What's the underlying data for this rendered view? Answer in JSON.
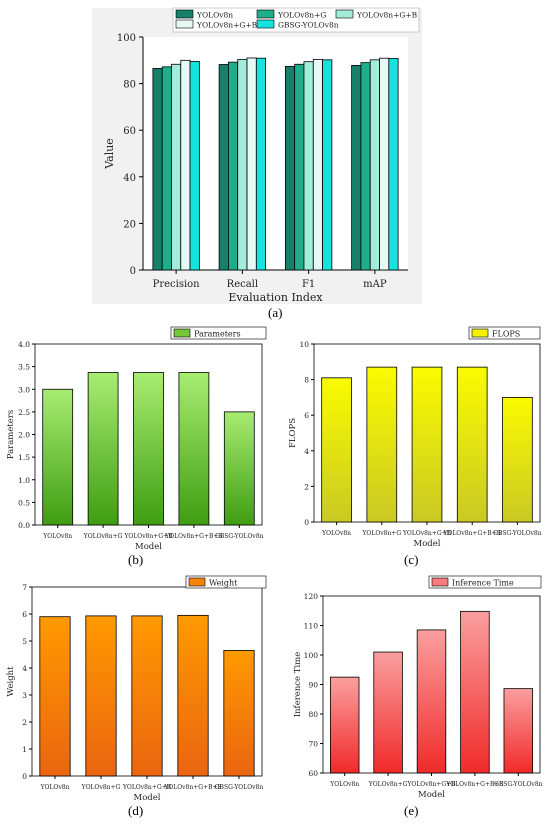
{
  "panel_labels": [
    "(a)",
    "(b)",
    "(c)",
    "(d)",
    "(e)"
  ],
  "chart_data": [
    {
      "id": "a",
      "type": "bar",
      "xlabel": "Evaluation Index",
      "ylabel": "Value",
      "ylim": [
        0,
        100
      ],
      "yticks": [
        0,
        20,
        40,
        60,
        80,
        100
      ],
      "categories": [
        "Precision",
        "Recall",
        "F1",
        "mAP"
      ],
      "legend_placement": "top",
      "series": [
        {
          "name": "YOLOv8n",
          "color": "#16806a",
          "values": [
            86.5,
            88.2,
            87.4,
            87.8
          ]
        },
        {
          "name": "YOLOv8n+G",
          "color": "#1fae8c",
          "values": [
            87.2,
            89.2,
            88.3,
            89.0
          ]
        },
        {
          "name": "YOLOv8n+G+B",
          "color": "#a2ecd9",
          "values": [
            88.3,
            90.4,
            89.4,
            90.2
          ]
        },
        {
          "name": "YOLOv8n+G+B+S",
          "color": "#e6f9f4",
          "values": [
            90.0,
            91.0,
            90.4,
            90.9
          ]
        },
        {
          "name": "GBSG-YOLOv8n",
          "color": "#17e3de",
          "values": [
            89.5,
            90.9,
            90.2,
            90.8
          ]
        }
      ]
    },
    {
      "id": "b",
      "type": "bar",
      "xlabel": "Model",
      "ylabel": "Parameters",
      "legend": "Parameters",
      "ylim": [
        0,
        4.0
      ],
      "yticks": [
        "0.0",
        "0.5",
        "1.0",
        "1.5",
        "2.0",
        "2.5",
        "3.0",
        "3.5",
        "4.0"
      ],
      "categories": [
        "YOLOv8n",
        "YOLOv8n+G",
        "YOLOv8n+G+B",
        "YOLOv8n+G+B+S",
        "GBSG-YOLOv8n"
      ],
      "values": [
        3.0,
        3.37,
        3.37,
        3.37,
        2.5
      ],
      "colors": {
        "top": "#a8ec72",
        "bottom": "#3f9d12",
        "legend": "#72c638"
      }
    },
    {
      "id": "c",
      "type": "bar",
      "xlabel": "Model",
      "ylabel": "FLOPS",
      "legend": "FLOPS",
      "ylim": [
        0,
        10
      ],
      "yticks": [
        "0",
        "2",
        "4",
        "6",
        "8",
        "10"
      ],
      "categories": [
        "YOLOv8n",
        "YOLOv8n+G",
        "YOLOv8n+G+B",
        "YOLOv8n+G+B+S",
        "GBSG-YOLOv8n"
      ],
      "values": [
        8.1,
        8.7,
        8.7,
        8.7,
        7.0
      ],
      "colors": {
        "top": "#fbfb00",
        "bottom": "#c9c925",
        "legend": "#f1f100"
      }
    },
    {
      "id": "d",
      "type": "bar",
      "xlabel": "Model",
      "ylabel": "Weight",
      "legend": "Weight",
      "ylim": [
        0,
        7
      ],
      "yticks": [
        "0",
        "1",
        "2",
        "3",
        "4",
        "5",
        "6",
        "7"
      ],
      "categories": [
        "YOLOv8n",
        "YOLOv8n+G",
        "YOLOv8n+G+B",
        "YOLOv8n+G+B+S",
        "GBSG-YOLOv8n"
      ],
      "values": [
        5.9,
        5.93,
        5.93,
        5.95,
        4.65
      ],
      "colors": {
        "top": "#ff9a00",
        "bottom": "#ea6510",
        "legend": "#f7840a"
      }
    },
    {
      "id": "e",
      "type": "bar",
      "xlabel": "Model",
      "ylabel": "Inference Time",
      "legend": "Inference Time",
      "ylim": [
        60,
        120
      ],
      "yticks": [
        "60",
        "70",
        "80",
        "90",
        "100",
        "110",
        "120"
      ],
      "categories": [
        "YOLOv8n",
        "YOLOv8n+G",
        "YOLOv8n+G+B",
        "YOLOv8n+G+B+S",
        "GBSG-YOLOv8n"
      ],
      "values": [
        92.5,
        101.0,
        108.5,
        114.8,
        88.6
      ],
      "colors": {
        "top": "#fb9f9f",
        "bottom": "#f02a2a",
        "legend": "#f77b7b"
      }
    }
  ]
}
